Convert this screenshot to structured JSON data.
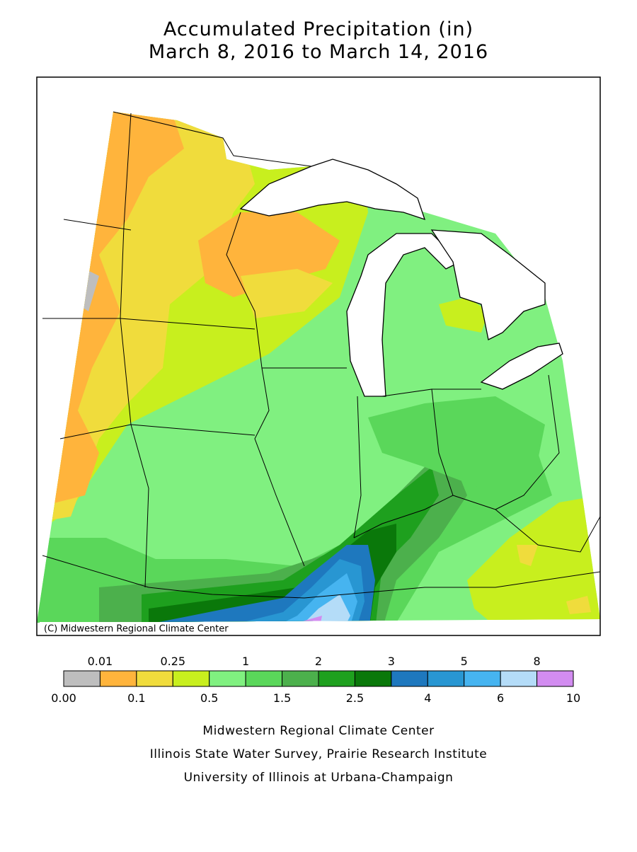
{
  "title": [
    "Accumulated Precipitation (in)",
    "March 8, 2016 to March 14, 2016"
  ],
  "map": {
    "credit": "(C) Midwestern Regional Climate Center"
  },
  "legend": {
    "boundaries": [
      "0.00",
      "0.01",
      "0.1",
      "0.25",
      "0.5",
      "1",
      "1.5",
      "2",
      "2.5",
      "3",
      "4",
      "5",
      "6",
      "8",
      "10"
    ],
    "colors": [
      "#bebebe",
      "#ffb43c",
      "#f0dc3c",
      "#c8ef1e",
      "#80f080",
      "#5ad75a",
      "#4cb04c",
      "#1ea01e",
      "#0a780a",
      "#1e78be",
      "#2896d2",
      "#46b4f0",
      "#b4dcf8",
      "#d28cf0"
    ]
  },
  "footer": [
    "Midwestern Regional Climate Center",
    "Illinois State Water Survey, Prairie Research Institute",
    "University of Illinois at Urbana-Champaign"
  ]
}
